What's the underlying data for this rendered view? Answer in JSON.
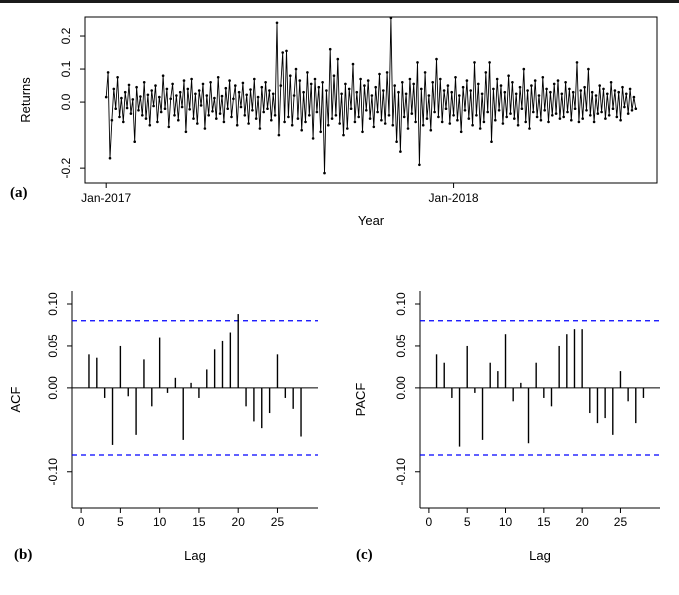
{
  "figure": {
    "background": "#ffffff",
    "border_color": "#1b1b1b",
    "axis_color": "#000000",
    "text_color": "#000000"
  },
  "chart_data": [
    {
      "id": "returns-series",
      "type": "line",
      "panel_label": "(a)",
      "ylabel": "Returns",
      "xlabel": "Year",
      "xticks": [
        {
          "index": 0,
          "label": "Jan-2017"
        },
        {
          "index": 183,
          "label": "Jan-2018"
        }
      ],
      "yticks": [
        0.2,
        0.1,
        0.0,
        -0.2
      ],
      "ytick_labels": [
        "0.2",
        "0.1",
        "0.0",
        "-0.2"
      ],
      "ylim": [
        -0.245,
        0.2576
      ],
      "line_color": "#000000",
      "values": [
        0.015,
        0.09,
        -0.17,
        -0.055,
        0.04,
        -0.02,
        0.075,
        -0.045,
        0.012,
        -0.06,
        0.03,
        -0.018,
        0.052,
        -0.035,
        0.008,
        -0.12,
        0.045,
        -0.025,
        0.017,
        -0.04,
        0.06,
        -0.05,
        0.022,
        -0.07,
        0.035,
        -0.012,
        0.05,
        -0.06,
        0.015,
        -0.03,
        0.08,
        -0.02,
        0.04,
        -0.075,
        0.01,
        0.055,
        -0.04,
        0.02,
        -0.055,
        0.03,
        -0.015,
        0.065,
        -0.09,
        0.04,
        -0.022,
        0.07,
        -0.05,
        0.025,
        -0.065,
        0.035,
        -0.01,
        0.055,
        -0.08,
        0.02,
        -0.04,
        0.06,
        -0.028,
        0.012,
        -0.05,
        0.075,
        -0.035,
        0.018,
        -0.06,
        0.042,
        -0.02,
        0.065,
        -0.045,
        0.01,
        0.05,
        -0.07,
        0.03,
        -0.015,
        0.058,
        -0.04,
        0.022,
        -0.065,
        0.038,
        -0.025,
        0.07,
        -0.05,
        0.015,
        -0.08,
        0.045,
        -0.03,
        0.06,
        -0.02,
        0.035,
        -0.055,
        0.025,
        -0.04,
        0.24,
        -0.1,
        0.05,
        0.15,
        -0.06,
        0.155,
        -0.045,
        0.08,
        -0.07,
        0.02,
        0.1,
        -0.05,
        0.065,
        -0.085,
        0.03,
        -0.06,
        0.09,
        -0.04,
        0.055,
        -0.11,
        0.07,
        -0.03,
        0.045,
        -0.09,
        0.06,
        -0.215,
        0.035,
        -0.07,
        0.16,
        -0.05,
        0.08,
        -0.04,
        0.13,
        -0.065,
        0.025,
        -0.1,
        0.055,
        -0.08,
        0.04,
        -0.02,
        0.115,
        -0.06,
        0.03,
        -0.045,
        0.07,
        -0.09,
        0.05,
        -0.025,
        0.065,
        -0.05,
        0.02,
        -0.075,
        0.045,
        -0.03,
        0.085,
        -0.055,
        0.035,
        -0.065,
        0.09,
        -0.04,
        0.255,
        -0.07,
        0.05,
        -0.12,
        0.03,
        -0.15,
        0.06,
        -0.045,
        0.025,
        -0.08,
        0.07,
        -0.035,
        0.055,
        -0.06,
        0.12,
        -0.19,
        0.04,
        -0.07,
        0.09,
        -0.05,
        0.02,
        -0.085,
        0.06,
        -0.03,
        0.13,
        -0.045,
        0.07,
        -0.06,
        0.035,
        -0.02,
        0.05,
        -0.065,
        0.03,
        -0.04,
        0.075,
        -0.055,
        0.02,
        -0.09,
        0.045,
        -0.025,
        0.065,
        -0.05,
        0.035,
        -0.07,
        0.12,
        -0.04,
        0.055,
        -0.08,
        0.025,
        -0.06,
        0.09,
        -0.03,
        0.12,
        -0.12,
        0.04,
        -0.055,
        0.07,
        -0.025,
        0.05,
        -0.065,
        0.03,
        -0.045,
        0.08,
        -0.035,
        0.06,
        -0.05,
        0.025,
        -0.07,
        0.045,
        -0.02,
        0.1,
        -0.06,
        0.035,
        -0.08,
        0.05,
        -0.03,
        0.065,
        -0.045,
        0.02,
        -0.055,
        0.075,
        -0.025,
        0.04,
        -0.06,
        0.03,
        -0.04,
        0.055,
        -0.035,
        0.065,
        -0.05,
        0.025,
        -0.045,
        0.06,
        -0.03,
        0.04,
        -0.055,
        0.03,
        -0.02,
        0.12,
        -0.06,
        0.035,
        -0.05,
        0.045,
        -0.025,
        0.1,
        -0.04,
        0.03,
        -0.06,
        0.02,
        -0.035,
        0.05,
        -0.03,
        0.04,
        -0.05,
        0.025,
        -0.04,
        0.06,
        -0.02,
        0.035,
        -0.045,
        0.03,
        -0.055,
        0.045,
        -0.015,
        0.025,
        -0.035,
        0.04,
        -0.025,
        0.015,
        -0.02
      ]
    },
    {
      "id": "acf",
      "type": "bar",
      "panel_label": "(b)",
      "ylabel": "ACF",
      "xlabel": "Lag",
      "lags_start": 1,
      "xticks": [
        0,
        5,
        10,
        15,
        20,
        25
      ],
      "xlim": [
        0,
        29
      ],
      "yticks": [
        0.1,
        0.05,
        0.0,
        -0.1
      ],
      "ytick_labels": [
        "0.10",
        "0.05",
        "0.00",
        "-0.10"
      ],
      "ylim": [
        -0.1432,
        0.1155
      ],
      "conf_bounds": [
        0.08,
        -0.08
      ],
      "conf_color": "#0000ff",
      "bar_color": "#000000",
      "values": [
        0.04,
        0.036,
        -0.012,
        -0.068,
        0.05,
        -0.01,
        -0.056,
        0.034,
        -0.022,
        0.06,
        -0.006,
        0.012,
        -0.062,
        0.006,
        -0.012,
        0.022,
        0.046,
        0.056,
        0.066,
        0.088,
        -0.022,
        -0.04,
        -0.048,
        -0.03,
        0.04,
        -0.012,
        -0.025,
        -0.058
      ]
    },
    {
      "id": "pacf",
      "type": "bar",
      "panel_label": "(c)",
      "ylabel": "PACF",
      "xlabel": "Lag",
      "lags_start": 1,
      "xticks": [
        0,
        5,
        10,
        15,
        20,
        25
      ],
      "xlim": [
        0,
        29
      ],
      "yticks": [
        0.1,
        0.05,
        0.0,
        -0.1
      ],
      "ytick_labels": [
        "0.10",
        "0.05",
        "0.00",
        "-0.10"
      ],
      "ylim": [
        -0.1432,
        0.1155
      ],
      "conf_bounds": [
        0.08,
        -0.08
      ],
      "conf_color": "#0000ff",
      "bar_color": "#000000",
      "values": [
        0.04,
        0.03,
        -0.012,
        -0.07,
        0.05,
        -0.006,
        -0.062,
        0.03,
        0.02,
        0.064,
        -0.016,
        0.006,
        -0.066,
        0.03,
        -0.012,
        -0.022,
        0.05,
        0.064,
        0.07,
        0.07,
        -0.03,
        -0.042,
        -0.036,
        -0.056,
        0.02,
        -0.016,
        -0.042,
        -0.012
      ]
    }
  ]
}
